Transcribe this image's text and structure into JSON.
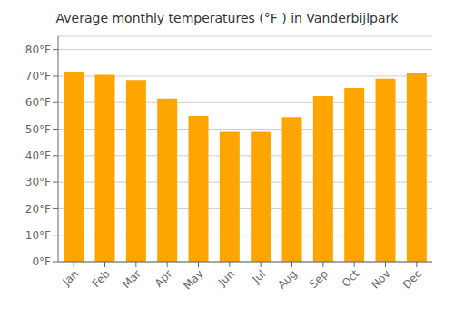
{
  "chart_data": {
    "type": "bar",
    "title": "Average monthly temperatures (°F ) in Vanderbijlpark",
    "categories": [
      "Jan",
      "Feb",
      "Mar",
      "Apr",
      "May",
      "Jun",
      "Jul",
      "Aug",
      "Sep",
      "Oct",
      "Nov",
      "Dec"
    ],
    "values": [
      71.5,
      70.5,
      68.5,
      61.5,
      55.0,
      49.0,
      49.0,
      54.5,
      62.5,
      65.5,
      69.0,
      71.0
    ],
    "color": "#FFA500",
    "ylim": [
      0,
      85
    ],
    "yticks": [
      {
        "value": 0,
        "label": "0°F"
      },
      {
        "value": 10,
        "label": "10°F"
      },
      {
        "value": 20,
        "label": "20°F"
      },
      {
        "value": 30,
        "label": "30°F"
      },
      {
        "value": 40,
        "label": "40°F"
      },
      {
        "value": 50,
        "label": "50°F"
      },
      {
        "value": 60,
        "label": "60°F"
      },
      {
        "value": 70,
        "label": "70°F"
      },
      {
        "value": 80,
        "label": "80°F"
      }
    ],
    "grid": true
  }
}
